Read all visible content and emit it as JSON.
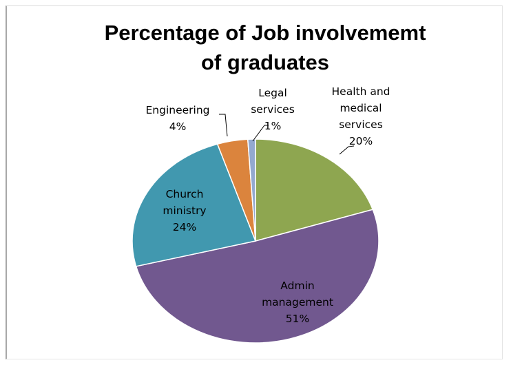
{
  "chart_data": {
    "type": "pie",
    "title_lines": [
      "Percentage of Job involvememt",
      "of graduates"
    ],
    "slices": [
      {
        "label": "Health and medical services",
        "label_lines": [
          "Health and",
          "medical",
          "services"
        ],
        "value": 20,
        "value_text": "20%",
        "color": "#8ea650"
      },
      {
        "label": "Admin management",
        "label_lines": [
          "Admin",
          "management"
        ],
        "value": 51,
        "value_text": "51%",
        "color": "#71588f"
      },
      {
        "label": "Church ministry",
        "label_lines": [
          "Church",
          "ministry"
        ],
        "value": 24,
        "value_text": "24%",
        "color": "#4198af"
      },
      {
        "label": "Engineering",
        "label_lines": [
          "Engineering"
        ],
        "value": 4,
        "value_text": "4%",
        "color": "#db843d"
      },
      {
        "label": "Legal services",
        "label_lines": [
          "Legal",
          "services"
        ],
        "value": 1,
        "value_text": "1%",
        "color": "#93a9cf"
      }
    ],
    "legend": "none",
    "data_labels": "category and percentage"
  }
}
